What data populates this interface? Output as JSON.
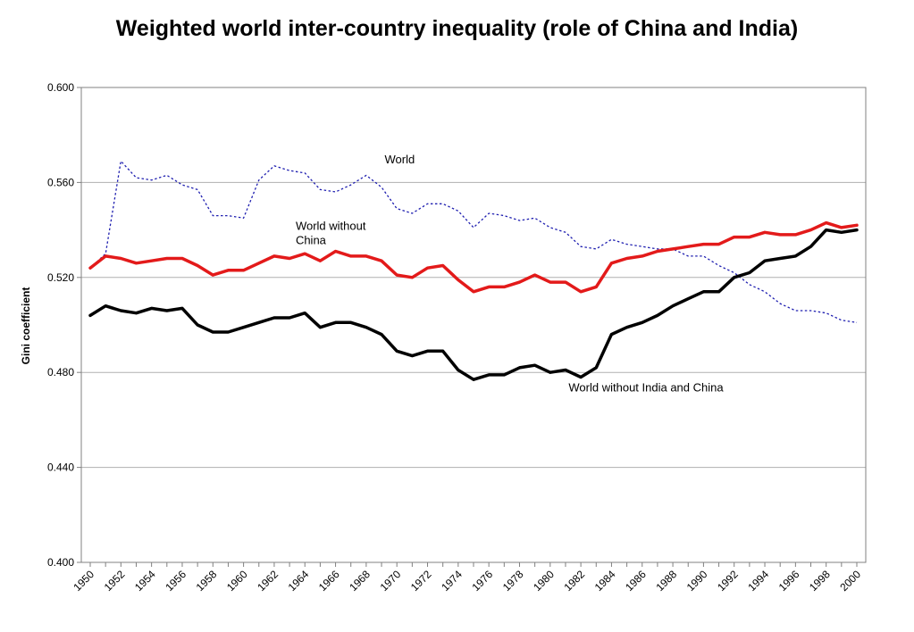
{
  "chart_data": {
    "type": "line",
    "title": "Weighted world inter-country inequality (role of China and India)",
    "ylabel": "Gini coefficient",
    "xlabel": "",
    "xlim": [
      1950,
      2000
    ],
    "ylim": [
      0.4,
      0.6
    ],
    "y_ticks": [
      "0.400",
      "0.440",
      "0.480",
      "0.520",
      "0.560",
      "0.600"
    ],
    "y_tick_values": [
      0.4,
      0.44,
      0.48,
      0.52,
      0.56,
      0.6
    ],
    "x_ticks": [
      "1950",
      "1952",
      "1954",
      "1956",
      "1958",
      "1960",
      "1962",
      "1964",
      "1966",
      "1968",
      "1970",
      "1972",
      "1974",
      "1976",
      "1978",
      "1980",
      "1982",
      "1984",
      "1986",
      "1988",
      "1990",
      "1992",
      "1994",
      "1996",
      "1998",
      "2000"
    ],
    "grid": "horizontal",
    "legend": "none",
    "x": [
      1950,
      1951,
      1952,
      1953,
      1954,
      1955,
      1956,
      1957,
      1958,
      1959,
      1960,
      1961,
      1962,
      1963,
      1964,
      1965,
      1966,
      1967,
      1968,
      1969,
      1970,
      1971,
      1972,
      1973,
      1974,
      1975,
      1976,
      1977,
      1978,
      1979,
      1980,
      1981,
      1982,
      1983,
      1984,
      1985,
      1986,
      1987,
      1988,
      1989,
      1990,
      1991,
      1992,
      1993,
      1994,
      1995,
      1996,
      1997,
      1998,
      1999,
      2000
    ],
    "series": [
      {
        "key": "world",
        "style": "dotted",
        "color": "#1f1fb0",
        "values": [
          0.524,
          0.53,
          0.569,
          0.562,
          0.561,
          0.563,
          0.559,
          0.557,
          0.546,
          0.546,
          0.545,
          0.561,
          0.567,
          0.565,
          0.564,
          0.557,
          0.556,
          0.559,
          0.563,
          0.558,
          0.549,
          0.547,
          0.551,
          0.551,
          0.548,
          0.541,
          0.547,
          0.546,
          0.544,
          0.545,
          0.541,
          0.539,
          0.533,
          0.532,
          0.536,
          0.534,
          0.533,
          0.532,
          0.532,
          0.529,
          0.529,
          0.525,
          0.522,
          0.517,
          0.514,
          0.509,
          0.506,
          0.506,
          0.505,
          0.502,
          0.501
        ]
      },
      {
        "key": "world_without_china",
        "style": "solid",
        "color": "#e31a1a",
        "values": [
          0.524,
          0.529,
          0.528,
          0.526,
          0.527,
          0.528,
          0.528,
          0.525,
          0.521,
          0.523,
          0.523,
          0.526,
          0.529,
          0.528,
          0.53,
          0.527,
          0.531,
          0.529,
          0.529,
          0.527,
          0.521,
          0.52,
          0.524,
          0.525,
          0.519,
          0.514,
          0.516,
          0.516,
          0.518,
          0.521,
          0.518,
          0.518,
          0.514,
          0.516,
          0.526,
          0.528,
          0.529,
          0.531,
          0.532,
          0.533,
          0.534,
          0.534,
          0.537,
          0.537,
          0.539,
          0.538,
          0.538,
          0.54,
          0.543,
          0.541,
          0.542
        ]
      },
      {
        "key": "world_without_india_china",
        "style": "solid",
        "color": "#000000",
        "values": [
          0.504,
          0.508,
          0.506,
          0.505,
          0.507,
          0.506,
          0.507,
          0.5,
          0.497,
          0.497,
          0.499,
          0.501,
          0.503,
          0.503,
          0.505,
          0.499,
          0.501,
          0.501,
          0.499,
          0.496,
          0.489,
          0.487,
          0.489,
          0.489,
          0.481,
          0.477,
          0.479,
          0.479,
          0.482,
          0.483,
          0.48,
          0.481,
          0.478,
          0.482,
          0.496,
          0.499,
          0.501,
          0.504,
          0.508,
          0.511,
          0.514,
          0.514,
          0.52,
          0.522,
          0.527,
          0.528,
          0.529,
          0.533,
          0.54,
          0.539,
          0.54
        ]
      }
    ],
    "annotations": [
      {
        "key": "world",
        "lines": [
          "World"
        ],
        "x": 1969.2,
        "y": 0.568
      },
      {
        "key": "world_without_china",
        "lines": [
          "World without",
          "China"
        ],
        "x": 1963.4,
        "y": 0.54
      },
      {
        "key": "world_without_india_china",
        "lines": [
          "World without India and China"
        ],
        "x": 1981.2,
        "y": 0.472
      }
    ]
  }
}
